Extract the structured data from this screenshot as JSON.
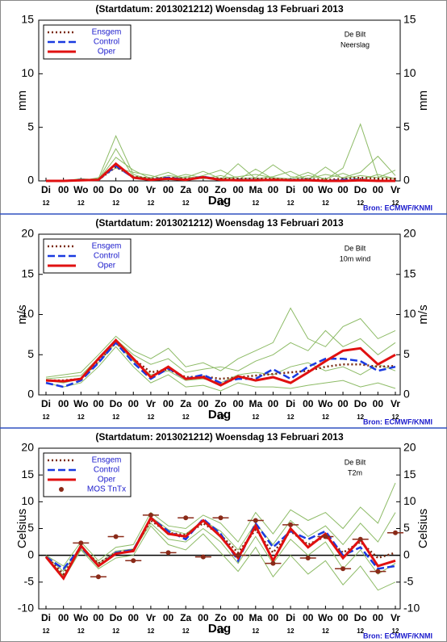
{
  "chart_data": [
    {
      "type": "line",
      "title": "(Startdatum: 2013021212)   Woensdag  13 Februari  2013",
      "station": "De Bilt",
      "variable": "Neerslag",
      "y_label": "mm",
      "x_label": "Dag",
      "source": "Bron: ECMWF/KNMI",
      "categories": [
        "Di",
        "00",
        "Wo",
        "00",
        "Do",
        "00",
        "Vr",
        "00",
        "Za",
        "00",
        "Zo",
        "00",
        "Ma",
        "00",
        "Di",
        "00",
        "Wo",
        "00",
        "Do",
        "00",
        "Vr"
      ],
      "category_sublabels": [
        "12",
        null,
        "12",
        null,
        "12",
        null,
        "12",
        null,
        "12",
        null,
        "12",
        null,
        "12",
        null,
        "12",
        null,
        "12",
        null,
        "12",
        null,
        "12"
      ],
      "ylim": [
        0,
        15
      ],
      "yticks": [
        0,
        5,
        10,
        15
      ],
      "legend": "upper left",
      "member_color": "#8dbb66",
      "members": [
        [
          0,
          0,
          0.1,
          0.2,
          4.2,
          0.6,
          0.1,
          0.5,
          0.3,
          0.9,
          0.2,
          0.4,
          0.6,
          0.3,
          0.2,
          0.8,
          0.1,
          1.2,
          5.3,
          0.4,
          0.2
        ],
        [
          0,
          0,
          0,
          0.1,
          3.0,
          0.4,
          0.3,
          0.8,
          0.1,
          0.5,
          1.0,
          0.2,
          0.3,
          1.5,
          0.4,
          0.2,
          0.6,
          0.3,
          0.8,
          2.3,
          0.5
        ],
        [
          0,
          0,
          0.2,
          0.1,
          2.2,
          1.0,
          0.2,
          0.2,
          0.6,
          0.3,
          0.1,
          1.6,
          0.2,
          0.4,
          0.9,
          0.1,
          1.3,
          0.2,
          0.5,
          0.3,
          1.0
        ],
        [
          0,
          0,
          0,
          0.3,
          1.2,
          0.8,
          0.5,
          0.1,
          0.4,
          0.2,
          0.5,
          0.1,
          1.1,
          0.2,
          0.1,
          0.5,
          0.2,
          0.7,
          0.1,
          0.6,
          0.2
        ]
      ],
      "series": [
        {
          "name": "Ensgem",
          "color": "#7a2a10",
          "style": "dotted",
          "values": [
            0,
            0,
            0.05,
            0.1,
            1.3,
            0.4,
            0.2,
            0.3,
            0.2,
            0.3,
            0.2,
            0.2,
            0.2,
            0.2,
            0.1,
            0.2,
            0.1,
            0.2,
            0.3,
            0.2,
            0.2
          ]
        },
        {
          "name": "Control",
          "color": "#1a3ae0",
          "style": "dashed",
          "values": [
            0,
            0,
            0.1,
            0.1,
            1.4,
            0.3,
            0.1,
            0.3,
            0.1,
            0.4,
            0.1,
            0.1,
            0.1,
            0.1,
            0.1,
            0.1,
            0,
            0.1,
            0.1,
            0,
            0
          ]
        },
        {
          "name": "Oper",
          "color": "#e01010",
          "style": "solid",
          "values": [
            0,
            0,
            0.05,
            0.1,
            1.6,
            0.3,
            0.1,
            0.2,
            0.1,
            0.35,
            0.1,
            0.05,
            0.05,
            0.1,
            0.05,
            0.05,
            0,
            0,
            0.05,
            0,
            0
          ]
        }
      ]
    },
    {
      "type": "line",
      "title": "(Startdatum: 2013021212)   Woensdag  13 Februari  2013",
      "station": "De Bilt",
      "variable": "10m wind",
      "y_label": "m/s",
      "x_label": "Dag",
      "source": "Bron: ECMWF/KNMI",
      "categories": [
        "Di",
        "00",
        "Wo",
        "00",
        "Do",
        "00",
        "Vr",
        "00",
        "Za",
        "00",
        "Zo",
        "00",
        "Ma",
        "00",
        "Di",
        "00",
        "Wo",
        "00",
        "Do",
        "00",
        "Vr"
      ],
      "category_sublabels": [
        "12",
        null,
        "12",
        null,
        "12",
        null,
        "12",
        null,
        "12",
        null,
        "12",
        null,
        "12",
        null,
        "12",
        null,
        "12",
        null,
        "12",
        null,
        "12"
      ],
      "ylim": [
        0,
        20
      ],
      "yticks": [
        0,
        5,
        10,
        15,
        20
      ],
      "legend": "upper left",
      "member_color": "#8dbb66",
      "members": [
        [
          2.2,
          2.5,
          2.8,
          5.0,
          7.3,
          5.5,
          4.5,
          5.8,
          3.5,
          4.0,
          3.0,
          4.5,
          5.5,
          6.5,
          10.8,
          7.0,
          6.0,
          8.5,
          9.5,
          7.0,
          8.0
        ],
        [
          1.5,
          1.0,
          1.5,
          3.5,
          6.0,
          3.5,
          1.5,
          2.5,
          1.0,
          1.2,
          0.5,
          1.5,
          1.0,
          1.0,
          0.8,
          1.2,
          1.5,
          1.8,
          1.0,
          1.5,
          0.8
        ],
        [
          2.0,
          2.2,
          2.4,
          4.6,
          6.9,
          5.0,
          3.8,
          4.5,
          2.8,
          3.2,
          3.5,
          3.0,
          4.2,
          5.0,
          6.5,
          5.5,
          8.0,
          6.0,
          7.0,
          5.0,
          6.5
        ],
        [
          1.8,
          1.5,
          2.0,
          4.0,
          6.5,
          4.2,
          2.5,
          3.0,
          1.8,
          2.0,
          1.5,
          2.5,
          2.8,
          2.5,
          3.5,
          4.0,
          3.0,
          3.5,
          2.5,
          3.8,
          3.0
        ]
      ],
      "series": [
        {
          "name": "Ensgem",
          "color": "#7a2a10",
          "style": "dotted",
          "values": [
            1.8,
            1.8,
            2.0,
            4.2,
            6.5,
            4.5,
            2.8,
            3.2,
            2.2,
            2.3,
            2.0,
            2.2,
            2.4,
            2.6,
            2.8,
            3.0,
            3.5,
            3.8,
            3.8,
            3.5,
            3.6
          ]
        },
        {
          "name": "Control",
          "color": "#1a3ae0",
          "style": "dashed",
          "values": [
            1.5,
            1.0,
            1.8,
            4.0,
            6.5,
            4.0,
            2.0,
            3.3,
            2.0,
            2.5,
            1.5,
            2.0,
            2.0,
            3.2,
            2.0,
            3.5,
            4.5,
            4.5,
            4.2,
            3.0,
            3.5
          ]
        },
        {
          "name": "Oper",
          "color": "#e01010",
          "style": "solid",
          "values": [
            1.8,
            1.7,
            2.0,
            4.5,
            6.8,
            4.5,
            2.2,
            3.5,
            2.0,
            2.2,
            1.2,
            2.3,
            1.8,
            2.2,
            1.5,
            2.8,
            4.2,
            5.5,
            5.8,
            3.8,
            5.0
          ]
        }
      ]
    },
    {
      "type": "line",
      "title": "(Startdatum: 2013021212)   Woensdag  13 Februari  2013",
      "station": "De Bilt",
      "variable": "T2m",
      "y_label": "Celsius",
      "x_label": "Dag",
      "source": "Bron: ECMWF/KNMI",
      "categories": [
        "Di",
        "00",
        "Wo",
        "00",
        "Do",
        "00",
        "Vr",
        "00",
        "Za",
        "00",
        "Zo",
        "00",
        "Ma",
        "00",
        "Di",
        "00",
        "Wo",
        "00",
        "Do",
        "00",
        "Vr"
      ],
      "category_sublabels": [
        "12",
        null,
        "12",
        null,
        "12",
        null,
        "12",
        null,
        "12",
        null,
        "12",
        null,
        "12",
        null,
        "12",
        null,
        "12",
        null,
        "12",
        null,
        "12"
      ],
      "ylim": [
        -10,
        20
      ],
      "yticks": [
        -10,
        -5,
        0,
        5,
        10,
        15,
        20
      ],
      "zero_line": true,
      "legend": "upper left",
      "member_color": "#8dbb66",
      "members": [
        [
          0,
          -2.0,
          2.5,
          -1.0,
          1.5,
          2.0,
          8.0,
          5.5,
          5.0,
          7.5,
          6.0,
          2.5,
          8.0,
          4.0,
          8.5,
          6.5,
          8.0,
          5.0,
          9.0,
          6.0,
          13.5
        ],
        [
          -0.5,
          -4.5,
          1.0,
          -2.5,
          -0.5,
          0.0,
          5.5,
          2.0,
          1.0,
          4.0,
          0.5,
          -3.0,
          1.5,
          -4.0,
          0.0,
          -3.5,
          -1.0,
          -5.5,
          -2.0,
          -6.5,
          -5.0
        ],
        [
          -0.2,
          -3.0,
          1.8,
          -1.5,
          0.8,
          1.2,
          7.2,
          4.8,
          4.0,
          6.5,
          4.5,
          1.0,
          6.0,
          2.0,
          6.5,
          3.5,
          5.5,
          2.0,
          6.0,
          2.5,
          8.0
        ],
        [
          -0.3,
          -3.8,
          1.2,
          -2.0,
          0.2,
          0.8,
          6.0,
          3.0,
          2.5,
          5.0,
          2.5,
          -1.5,
          3.5,
          -1.5,
          3.0,
          0.0,
          2.5,
          -2.5,
          1.0,
          -3.5,
          -1.5
        ]
      ],
      "series": [
        {
          "name": "Ensgem",
          "color": "#7a2a10",
          "style": "dotted",
          "values": [
            -0.2,
            -3.5,
            1.5,
            -1.5,
            0.5,
            1.0,
            6.5,
            4.2,
            3.8,
            6.0,
            3.8,
            0.5,
            4.8,
            0.5,
            4.5,
            2.0,
            3.5,
            0.5,
            2.5,
            -0.5,
            0.5
          ]
        },
        {
          "name": "Control",
          "color": "#1a3ae0",
          "style": "dashed",
          "values": [
            -0.3,
            -2.5,
            1.5,
            -2.0,
            0.5,
            1.0,
            7.0,
            4.5,
            3.0,
            6.8,
            4.0,
            -1.0,
            6.0,
            1.5,
            4.5,
            3.0,
            4.5,
            0,
            1.5,
            -2.5,
            -2.0
          ]
        },
        {
          "name": "Oper",
          "color": "#e01010",
          "style": "solid",
          "values": [
            -0.3,
            -4.3,
            1.8,
            -2.0,
            0.3,
            0.8,
            7.0,
            4.0,
            3.5,
            6.5,
            3.5,
            -0.5,
            5.5,
            -1.0,
            5.0,
            1.5,
            4.0,
            -0.5,
            3.0,
            -2.0,
            -1.0
          ]
        },
        {
          "name": "MOS TnTx",
          "color": "#8a2a18",
          "style": "points",
          "values": [
            null,
            null,
            2.3,
            -4.0,
            3.5,
            -1.0,
            7.5,
            0.5,
            7.0,
            -0.3,
            7.0,
            0.0,
            6.5,
            -1.5,
            5.7,
            -0.5,
            3.5,
            -2.5,
            3.0,
            -3.0,
            4.2
          ]
        }
      ]
    }
  ]
}
